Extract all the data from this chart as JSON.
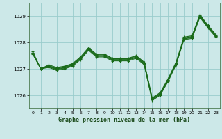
{
  "title": "Graphe pression niveau de la mer (hPa)",
  "background_color": "#cce8e8",
  "grid_color": "#99cccc",
  "line_color": "#1a6b1a",
  "xlim": [
    -0.5,
    23.5
  ],
  "ylim": [
    1025.5,
    1029.5
  ],
  "yticks": [
    1026,
    1027,
    1028,
    1029
  ],
  "xtick_labels": [
    "0",
    "1",
    "2",
    "3",
    "4",
    "5",
    "6",
    "7",
    "8",
    "9",
    "10",
    "11",
    "12",
    "13",
    "14",
    "15",
    "16",
    "17",
    "18",
    "19",
    "20",
    "21",
    "22",
    "23"
  ],
  "series": [
    [
      1027.65,
      1027.0,
      1027.15,
      1027.05,
      1027.1,
      1027.2,
      1027.45,
      1027.8,
      1027.55,
      1027.55,
      1027.4,
      1027.4,
      1027.4,
      1027.5,
      1027.25,
      1025.9,
      1026.1,
      1026.62,
      1027.25,
      1028.2,
      1028.25,
      1029.05,
      1028.65,
      1028.3
    ],
    [
      1027.6,
      1027.0,
      1027.1,
      1027.0,
      1027.05,
      1027.15,
      1027.4,
      1027.75,
      1027.5,
      1027.5,
      1027.35,
      1027.35,
      1027.35,
      1027.45,
      1027.2,
      1025.85,
      1026.05,
      1026.57,
      1027.2,
      1028.15,
      1028.2,
      1029.0,
      1028.6,
      1028.25
    ],
    [
      1027.6,
      1027.0,
      1027.12,
      1027.02,
      1027.08,
      1027.18,
      1027.43,
      1027.78,
      1027.53,
      1027.53,
      1027.38,
      1027.38,
      1027.38,
      1027.48,
      1027.23,
      1025.87,
      1026.07,
      1026.59,
      1027.22,
      1028.17,
      1028.22,
      1029.02,
      1028.62,
      1028.27
    ],
    [
      1027.57,
      1027.0,
      1027.08,
      1026.98,
      1027.03,
      1027.13,
      1027.38,
      1027.73,
      1027.48,
      1027.48,
      1027.33,
      1027.33,
      1027.33,
      1027.43,
      1027.18,
      1025.83,
      1026.03,
      1026.55,
      1027.18,
      1028.13,
      1028.18,
      1028.98,
      1028.58,
      1028.23
    ],
    [
      1027.55,
      1027.0,
      1027.05,
      1026.95,
      1027.0,
      1027.1,
      1027.35,
      1027.7,
      1027.45,
      1027.45,
      1027.3,
      1027.3,
      1027.3,
      1027.4,
      1027.15,
      1025.8,
      1026.0,
      1026.52,
      1027.15,
      1028.1,
      1028.15,
      1028.95,
      1028.55,
      1028.2
    ]
  ]
}
